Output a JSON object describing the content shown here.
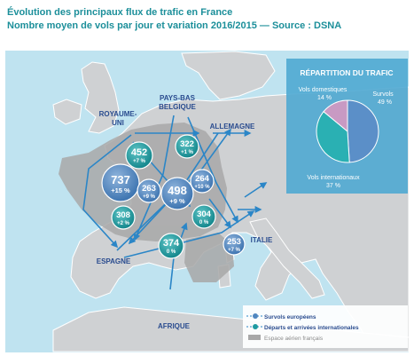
{
  "header": {
    "line1": "Évolution des principaux flux de trafic en France",
    "line2": "Nombre moyen de vols par jour et variation 2016/2015 — Source : DSNA"
  },
  "colors": {
    "sea": "#bfe3f0",
    "land": "#c9c9c9",
    "france_airspace": "#a8a8a8",
    "teal": "#1d9aa0",
    "blue": "#4f86bf",
    "title": "#1c8f9a",
    "arrow": "#2b86c7",
    "label": "#2a4c8f"
  },
  "countries": [
    {
      "id": "uk",
      "label": "ROYAUME-\nUNI"
    },
    {
      "id": "benelux",
      "label": "PAYS-BAS\nBELGIQUE"
    },
    {
      "id": "germany",
      "label": "ALLEMAGNE"
    },
    {
      "id": "spain",
      "label": "ESPAGNE"
    },
    {
      "id": "italy",
      "label": "ITALIE"
    },
    {
      "id": "africa",
      "label": "AFRIQUE"
    }
  ],
  "flows": [
    {
      "id": "737",
      "value": "737",
      "change": "+15 %",
      "kind": "blue"
    },
    {
      "id": "452",
      "value": "452",
      "change": "+7 %",
      "kind": "teal"
    },
    {
      "id": "263",
      "value": "263",
      "change": "+9 %",
      "kind": "blue"
    },
    {
      "id": "498",
      "value": "498",
      "change": "+9 %",
      "kind": "blue"
    },
    {
      "id": "322",
      "value": "322",
      "change": "+1 %",
      "kind": "teal"
    },
    {
      "id": "264",
      "value": "264",
      "change": "+10 %",
      "kind": "blue"
    },
    {
      "id": "308",
      "value": "308",
      "change": "+2 %",
      "kind": "teal"
    },
    {
      "id": "304",
      "value": "304",
      "change": "0 %",
      "kind": "teal"
    },
    {
      "id": "374",
      "value": "374",
      "change": "0 %",
      "kind": "teal"
    },
    {
      "id": "253",
      "value": "253",
      "change": "+7 %",
      "kind": "blue"
    }
  ],
  "repartition": {
    "title": "RÉPARTITION DU TRAFIC",
    "slices": [
      {
        "name": "Survols",
        "pct": "49 %",
        "value": 49,
        "color": "#5b8fc8"
      },
      {
        "name": "Vols internationaux",
        "pct": "37 %",
        "value": 37,
        "color": "#2ab0b3"
      },
      {
        "name": "Vols domestiques",
        "pct": "14 %",
        "value": 14,
        "color": "#c89ac3"
      }
    ]
  },
  "legend": {
    "items": [
      {
        "label": "Survols européens",
        "color": "#4f86bf"
      },
      {
        "label": "Départs et arrivées internationales",
        "color": "#1d9aa0"
      },
      {
        "label": "Espace aérien français",
        "color": "#a8a8a8"
      }
    ]
  }
}
